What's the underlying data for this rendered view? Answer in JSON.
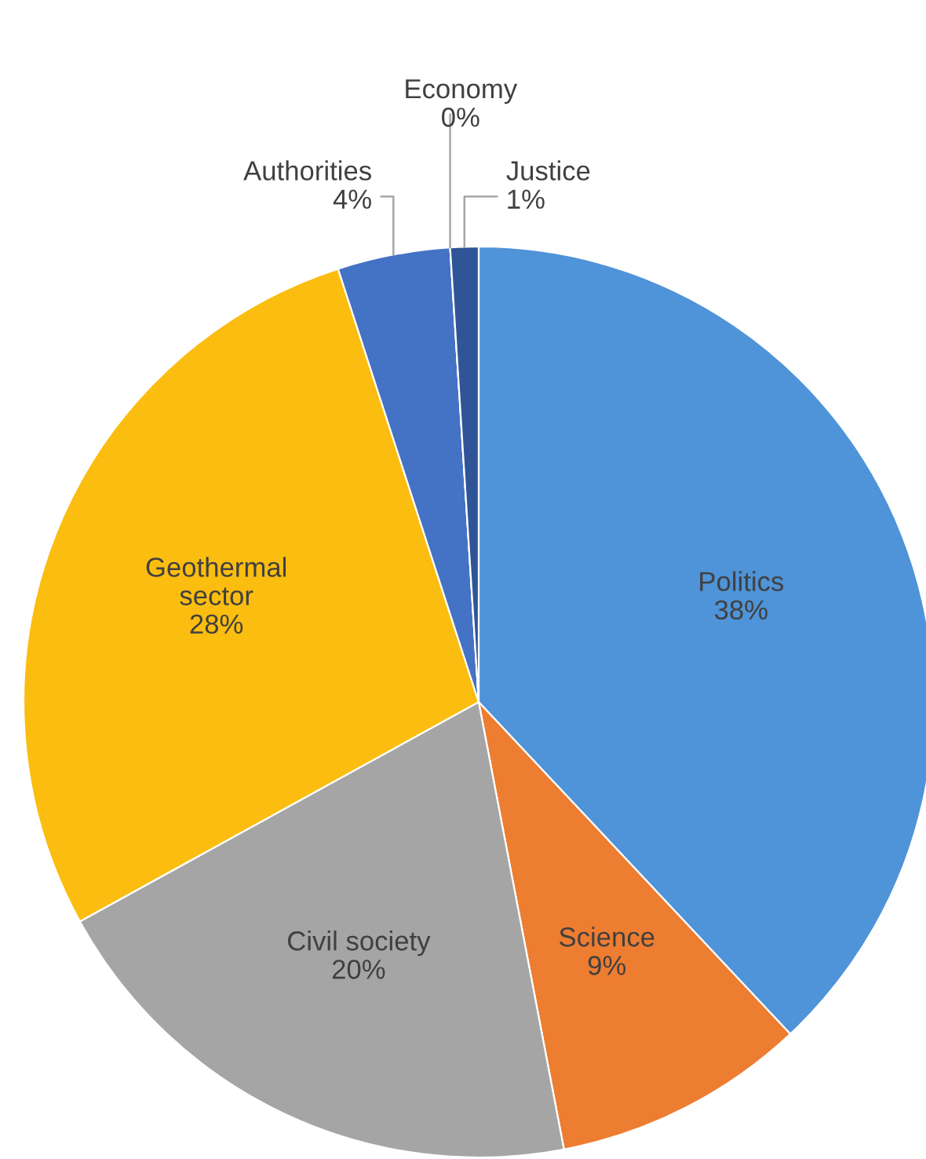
{
  "chart_data": {
    "type": "pie",
    "categories": [
      "Politics",
      "Science",
      "Civil society",
      "Geothermal\nsector",
      "Authorities",
      "Economy",
      "Justice"
    ],
    "values": [
      38,
      9,
      20,
      28,
      4,
      0,
      1
    ],
    "colors": [
      "#4f93d8",
      "#ed7d31",
      "#a5a5a5",
      "#fbbd0f",
      "#4472c4",
      "#70ad47",
      "#2f5597"
    ],
    "value_labels": [
      "38%",
      "9%",
      "20%",
      "28%",
      "4%",
      "0%",
      "1%"
    ]
  }
}
